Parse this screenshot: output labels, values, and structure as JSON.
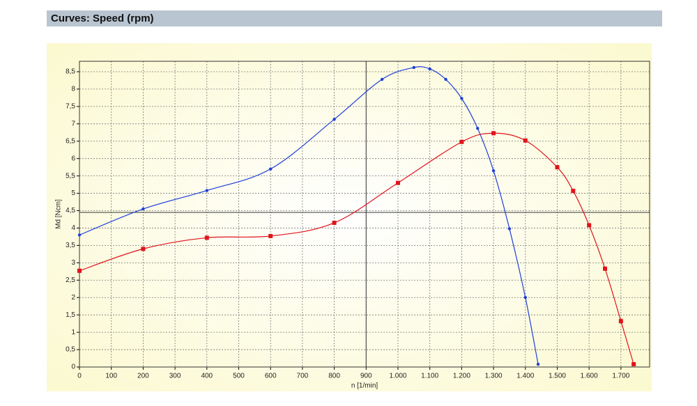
{
  "header": {
    "title": "Curves: Speed (rpm)"
  },
  "chart_data": {
    "type": "line",
    "x_label": "n [1/min]",
    "y_label": "Md [Ncm]",
    "xlim": [
      0,
      1790
    ],
    "ylim": [
      0,
      8.8
    ],
    "xticks": [
      0,
      100,
      200,
      300,
      400,
      500,
      600,
      700,
      800,
      900,
      {
        "value": 1000,
        "label": "1.000"
      },
      {
        "value": 1100,
        "label": "1.100"
      },
      {
        "value": 1200,
        "label": "1.200"
      },
      {
        "value": 1300,
        "label": "1.300"
      },
      {
        "value": 1400,
        "label": "1.400"
      },
      {
        "value": 1500,
        "label": "1.500"
      },
      {
        "value": 1600,
        "label": "1.600"
      },
      {
        "value": 1700,
        "label": "1.700"
      }
    ],
    "yticks": [
      0,
      {
        "value": 0.5,
        "label": "0,5"
      },
      1,
      {
        "value": 1.5,
        "label": "1,5"
      },
      2,
      {
        "value": 2.5,
        "label": "2,5"
      },
      3,
      {
        "value": 3.5,
        "label": "3,5"
      },
      4,
      {
        "value": 4.5,
        "label": "4,5"
      },
      5,
      {
        "value": 5.5,
        "label": "5,5"
      },
      6,
      {
        "value": 6.5,
        "label": "6,5"
      },
      7,
      {
        "value": 7.5,
        "label": "7,5"
      },
      8,
      {
        "value": 8.5,
        "label": "8,5"
      }
    ],
    "grid": true,
    "crosshair": {
      "x": 900,
      "y": 4.45
    },
    "series": [
      {
        "color": "#1f3fd8",
        "marker": "circle",
        "x": [
          0,
          200,
          400,
          600,
          800,
          950,
          1050,
          1100,
          1150,
          1200,
          1250,
          1300,
          1350,
          1400,
          1440
        ],
        "values": [
          3.8,
          4.55,
          5.08,
          5.7,
          7.13,
          8.28,
          8.62,
          8.58,
          8.28,
          7.73,
          6.87,
          5.65,
          3.98,
          2.0,
          0.08
        ]
      },
      {
        "color": "#e0141b",
        "marker": "square",
        "x": [
          0,
          200,
          400,
          600,
          800,
          1000,
          1200,
          1300,
          1400,
          1500,
          1550,
          1600,
          1650,
          1700,
          1740
        ],
        "values": [
          2.77,
          3.4,
          3.72,
          3.77,
          4.15,
          5.3,
          6.48,
          6.73,
          6.52,
          5.75,
          5.07,
          4.08,
          2.83,
          1.32,
          0.08
        ]
      }
    ]
  }
}
